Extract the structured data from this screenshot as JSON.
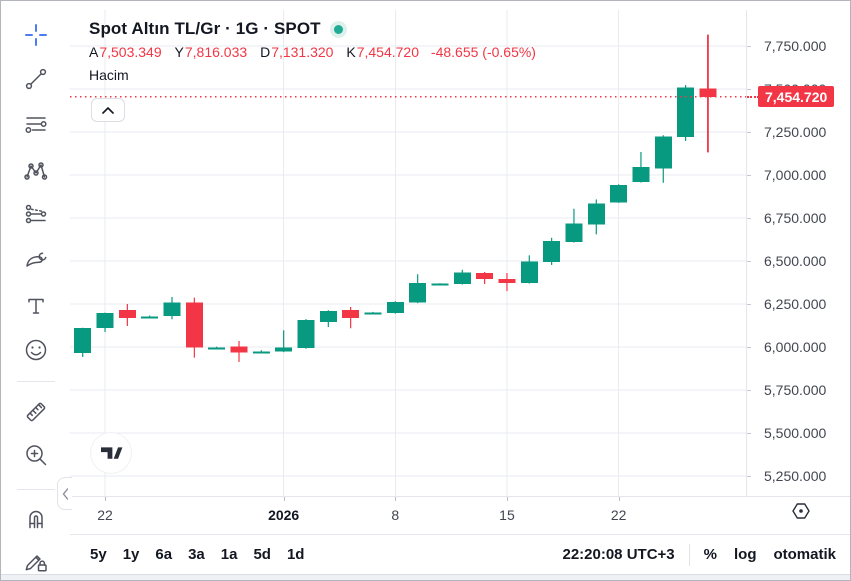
{
  "window": {
    "background": "#ffffff",
    "border_color": "#b2b5be"
  },
  "header": {
    "title": "Spot Altın TL/Gr · 1G · SPOT",
    "status_dot_color": "#22ab94",
    "ohlc": {
      "open_label": "A",
      "open_value": "7,503.349",
      "high_label": "Y",
      "high_value": "7,816.033",
      "low_label": "D",
      "low_value": "7,131.320",
      "close_label": "K",
      "close_value": "7,454.720",
      "change": "-48.655 (-0.65%)",
      "value_color": "#f23645"
    },
    "volume_label": "Hacim"
  },
  "left_toolbar": {
    "selected_color": "#4c7bf3",
    "icon_color": "#50535e",
    "items": [
      {
        "name": "crosshair",
        "selected": true
      },
      {
        "name": "trend-line"
      },
      {
        "name": "fib-retracement"
      },
      {
        "name": "xabcd-pattern"
      },
      {
        "name": "forecast"
      },
      {
        "name": "brush"
      },
      {
        "name": "text"
      },
      {
        "name": "emoji"
      },
      {
        "name": "ruler"
      },
      {
        "name": "zoom-in"
      },
      {
        "name": "magnet"
      },
      {
        "name": "edit-lock"
      }
    ]
  },
  "chart_data": {
    "type": "candlestick",
    "title": "Spot Altın TL/Gr",
    "interval": "1G",
    "market": "SPOT",
    "up_color": "#089981",
    "down_color": "#f23645",
    "grid": true,
    "legend_position": "top-left",
    "last_price": 7454.72,
    "last_price_label": "7,454.720",
    "y_axis": {
      "side": "right",
      "ticks": [
        7750,
        7500,
        7250,
        7000,
        6750,
        6500,
        6250,
        6000,
        5750,
        5500,
        5250
      ],
      "tick_decimals": 3,
      "range_top": 7950,
      "range_bottom": 5135
    },
    "x_axis": {
      "tick_labels": [
        {
          "text": "22",
          "candle_index": 1
        },
        {
          "text": "2026",
          "candle_index": 9,
          "bold": true
        },
        {
          "text": "8",
          "candle_index": 14
        },
        {
          "text": "15",
          "candle_index": 19
        },
        {
          "text": "22",
          "candle_index": 24
        }
      ]
    },
    "candles": [
      [
        5965,
        6112,
        5942,
        6110
      ],
      [
        6110,
        6200,
        6087,
        6198
      ],
      [
        6215,
        6250,
        6122,
        6170
      ],
      [
        6174,
        6183,
        6167,
        6177
      ],
      [
        6180,
        6291,
        6161,
        6258
      ],
      [
        6258,
        6287,
        5938,
        5996
      ],
      [
        5994,
        6002,
        5989,
        5998
      ],
      [
        6002,
        6035,
        5913,
        5967
      ],
      [
        5971,
        5981,
        5964,
        5975
      ],
      [
        5973,
        6097,
        5970,
        5996
      ],
      [
        5994,
        6162,
        5990,
        6157
      ],
      [
        6144,
        6214,
        6116,
        6209
      ],
      [
        6215,
        6233,
        6109,
        6170
      ],
      [
        6196,
        6204,
        6192,
        6200
      ],
      [
        6198,
        6266,
        6194,
        6263
      ],
      [
        6258,
        6423,
        6255,
        6372
      ],
      [
        6364,
        6371,
        6359,
        6368
      ],
      [
        6366,
        6449,
        6363,
        6434
      ],
      [
        6430,
        6436,
        6366,
        6395
      ],
      [
        6395,
        6430,
        6325,
        6372
      ],
      [
        6372,
        6533,
        6369,
        6496
      ],
      [
        6494,
        6635,
        6477,
        6616
      ],
      [
        6610,
        6804,
        6607,
        6719
      ],
      [
        6713,
        6858,
        6655,
        6835
      ],
      [
        6841,
        6946,
        6838,
        6942
      ],
      [
        6959,
        7134,
        6956,
        7047
      ],
      [
        7039,
        7231,
        6955,
        7225
      ],
      [
        7221,
        7523,
        7198,
        7508
      ],
      [
        7503.349,
        7816.033,
        7131.32,
        7454.72
      ]
    ]
  },
  "footer": {
    "ranges": [
      "5y",
      "1y",
      "6a",
      "3a",
      "1a",
      "5d",
      "1d"
    ],
    "clock": "22:20:08 UTC+3",
    "scale_modes": [
      "%",
      "log",
      "otomatik"
    ]
  },
  "icons": {
    "expand_pane": "chevron-up",
    "collapse_toolbar": "chevron-left",
    "scale_settings": "hexagon-dot",
    "watermark": "tradingview-logo"
  }
}
